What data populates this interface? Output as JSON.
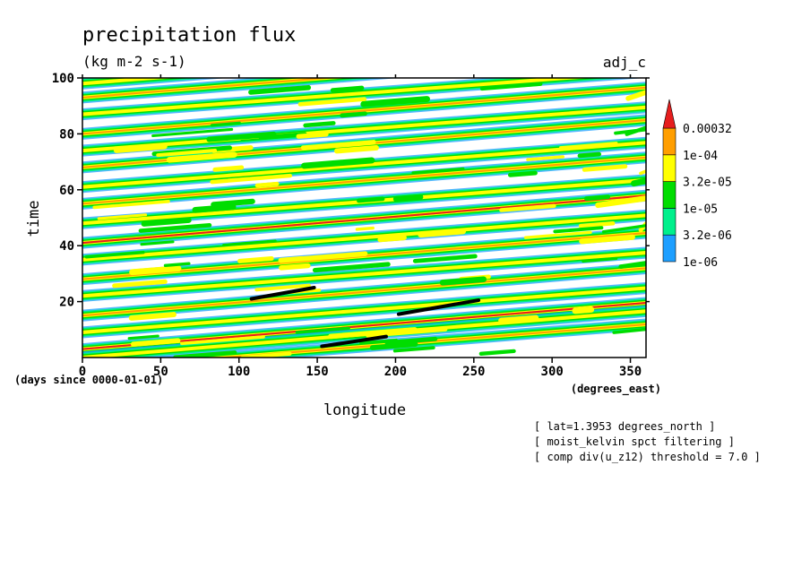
{
  "chart_data": {
    "type": "heatmap",
    "title": "precipitation flux",
    "subtitle": "(kg m-2 s-1)",
    "label_right": "adj_c",
    "xlabel": "longitude",
    "ylabel": "time",
    "x_units": "(degrees_east)",
    "y_units": "(days since 0000-01-01)",
    "xlim": [
      0,
      360
    ],
    "ylim": [
      0,
      100
    ],
    "x_ticks": [
      {
        "value": 0,
        "label": "0"
      },
      {
        "value": 50,
        "label": "50"
      },
      {
        "value": 100,
        "label": "100"
      },
      {
        "value": 150,
        "label": "150"
      },
      {
        "value": 200,
        "label": "200"
      },
      {
        "value": 250,
        "label": "250"
      },
      {
        "value": 300,
        "label": "300"
      },
      {
        "value": 350,
        "label": "350"
      }
    ],
    "y_ticks": [
      {
        "value": 20,
        "label": "20"
      },
      {
        "value": 40,
        "label": "40"
      },
      {
        "value": 60,
        "label": "60"
      },
      {
        "value": 80,
        "label": "80"
      },
      {
        "value": 100,
        "label": "100"
      }
    ],
    "colorbar": {
      "levels": [
        "1e-06",
        "3.2e-06",
        "1e-05",
        "3.2e-05",
        "1e-04",
        "0.00032"
      ],
      "colors": [
        "#1e9fff",
        "#00f08c",
        "#00dd00",
        "#ffff00",
        "#ff9e00",
        "#e61e1e"
      ]
    },
    "bands": [
      {
        "t0": 93,
        "slope": 0.045,
        "level": 4
      },
      {
        "t0": 87,
        "slope": 0.042,
        "level": 3
      },
      {
        "t0": 80,
        "slope": 0.046,
        "level": 4
      },
      {
        "t0": 74,
        "slope": 0.043,
        "level": 3
      },
      {
        "t0": 68,
        "slope": 0.047,
        "level": 4
      },
      {
        "t0": 61,
        "slope": 0.044,
        "level": 3
      },
      {
        "t0": 55,
        "slope": 0.046,
        "level": 4
      },
      {
        "t0": 48,
        "slope": 0.043,
        "level": 3
      },
      {
        "t0": 41,
        "slope": 0.047,
        "level": 5
      },
      {
        "t0": 35,
        "slope": 0.044,
        "level": 3
      },
      {
        "t0": 28,
        "slope": 0.046,
        "level": 4
      },
      {
        "t0": 22,
        "slope": 0.043,
        "level": 3
      },
      {
        "t0": 15,
        "slope": 0.047,
        "level": 4
      },
      {
        "t0": 9,
        "slope": 0.044,
        "level": 3
      },
      {
        "t0": 3,
        "slope": 0.046,
        "level": 5
      },
      {
        "t0": -4,
        "slope": 0.044,
        "level": 4
      },
      {
        "t0": 0,
        "slope": 0.046,
        "level": 3
      },
      {
        "t0": 98,
        "slope": 0.044,
        "level": 3
      }
    ],
    "filtered_segments": [
      {
        "lon": [
          108,
          148
        ],
        "time": [
          21,
          25
        ]
      },
      {
        "lon": [
          202,
          253
        ],
        "time": [
          15.5,
          20.5
        ]
      },
      {
        "lon": [
          153,
          194
        ],
        "time": [
          4,
          7.5
        ]
      }
    ]
  },
  "annotations": [
    "[ lat=1.3953 degrees_north ]",
    "[ moist_kelvin spct filtering ]",
    "[ comp div(u_z12) threshold = 7.0 ]"
  ]
}
